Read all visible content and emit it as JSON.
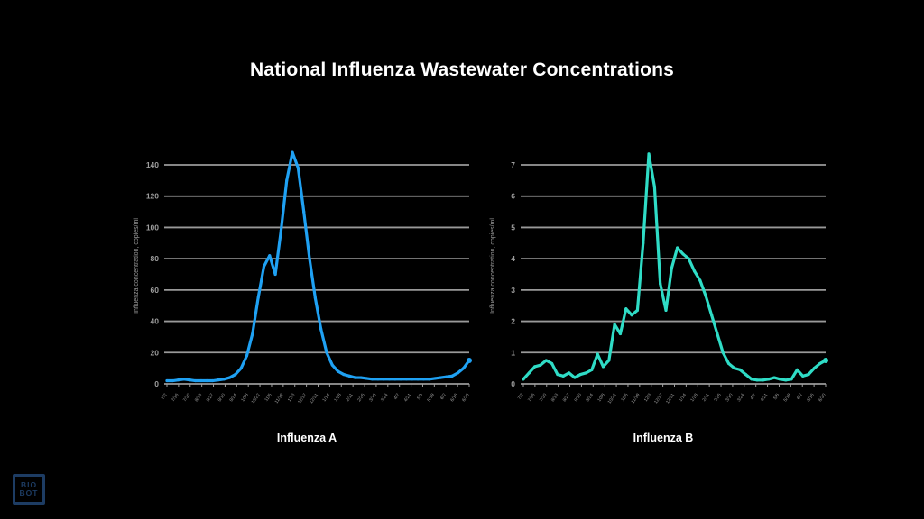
{
  "title": "National Influenza Wastewater Concentrations",
  "colors": {
    "background": "#000000",
    "grid": "#999999",
    "tick_label": "#9e9e9e",
    "title_text": "#ffffff",
    "caption_text": "#ffffff",
    "influenza_a_line": "#1fa1f3",
    "influenza_b_line": "#2fdcc6",
    "logo": "#1d3c63"
  },
  "logo": {
    "line1": "BIO",
    "line2": "BOT"
  },
  "chart_data": [
    {
      "type": "line",
      "title": "Influenza A",
      "ylabel": "Influenza concentration, copies/ml",
      "xlabel": "",
      "ylim": [
        0,
        150
      ],
      "yticks": [
        0,
        20,
        40,
        60,
        80,
        100,
        120,
        140
      ],
      "grid": true,
      "legend": "none",
      "line_color": "#1fa1f3",
      "x_labels": [
        "7/2",
        "7/16",
        "7/30",
        "8/13",
        "8/27",
        "9/10",
        "9/24",
        "10/8",
        "10/22",
        "11/5",
        "11/19",
        "12/3",
        "12/17",
        "12/31",
        "1/14",
        "1/28",
        "2/11",
        "2/25",
        "3/10",
        "3/24",
        "4/7",
        "4/21",
        "5/5",
        "5/19",
        "6/2",
        "6/16",
        "6/30"
      ],
      "values": [
        2,
        2,
        2.5,
        3,
        2.5,
        2,
        2,
        2,
        2,
        2.5,
        3,
        4,
        6,
        10,
        18,
        32,
        55,
        75,
        82,
        70,
        98,
        130,
        148,
        138,
        110,
        80,
        55,
        35,
        20,
        12,
        8,
        6,
        5,
        4,
        4,
        3.5,
        3,
        3,
        3,
        3,
        3,
        3,
        3,
        3,
        3,
        3,
        3,
        3.5,
        4,
        4.5,
        5,
        7,
        10,
        15
      ]
    },
    {
      "type": "line",
      "title": "Influenza B",
      "ylabel": "Influenza concentration, copies/ml",
      "xlabel": "",
      "ylim": [
        0,
        7.5
      ],
      "yticks": [
        0,
        1,
        2,
        3,
        4,
        5,
        6,
        7
      ],
      "grid": true,
      "legend": "none",
      "line_color": "#2fdcc6",
      "x_labels": [
        "7/2",
        "7/16",
        "7/30",
        "8/13",
        "8/27",
        "9/10",
        "9/24",
        "10/8",
        "10/22",
        "11/5",
        "11/19",
        "12/3",
        "12/17",
        "12/31",
        "1/14",
        "1/28",
        "2/11",
        "2/25",
        "3/10",
        "3/24",
        "4/7",
        "4/21",
        "5/5",
        "5/19",
        "6/2",
        "6/16",
        "6/30"
      ],
      "values": [
        0.15,
        0.35,
        0.55,
        0.6,
        0.75,
        0.65,
        0.3,
        0.25,
        0.35,
        0.2,
        0.3,
        0.35,
        0.45,
        0.95,
        0.55,
        0.75,
        1.9,
        1.6,
        2.4,
        2.2,
        2.35,
        4.5,
        7.35,
        6.3,
        3.2,
        2.35,
        3.7,
        4.35,
        4.15,
        4.0,
        3.6,
        3.3,
        2.8,
        2.2,
        1.6,
        1.0,
        0.65,
        0.5,
        0.45,
        0.3,
        0.15,
        0.12,
        0.12,
        0.15,
        0.2,
        0.15,
        0.12,
        0.15,
        0.45,
        0.25,
        0.3,
        0.5,
        0.65,
        0.75
      ]
    }
  ]
}
